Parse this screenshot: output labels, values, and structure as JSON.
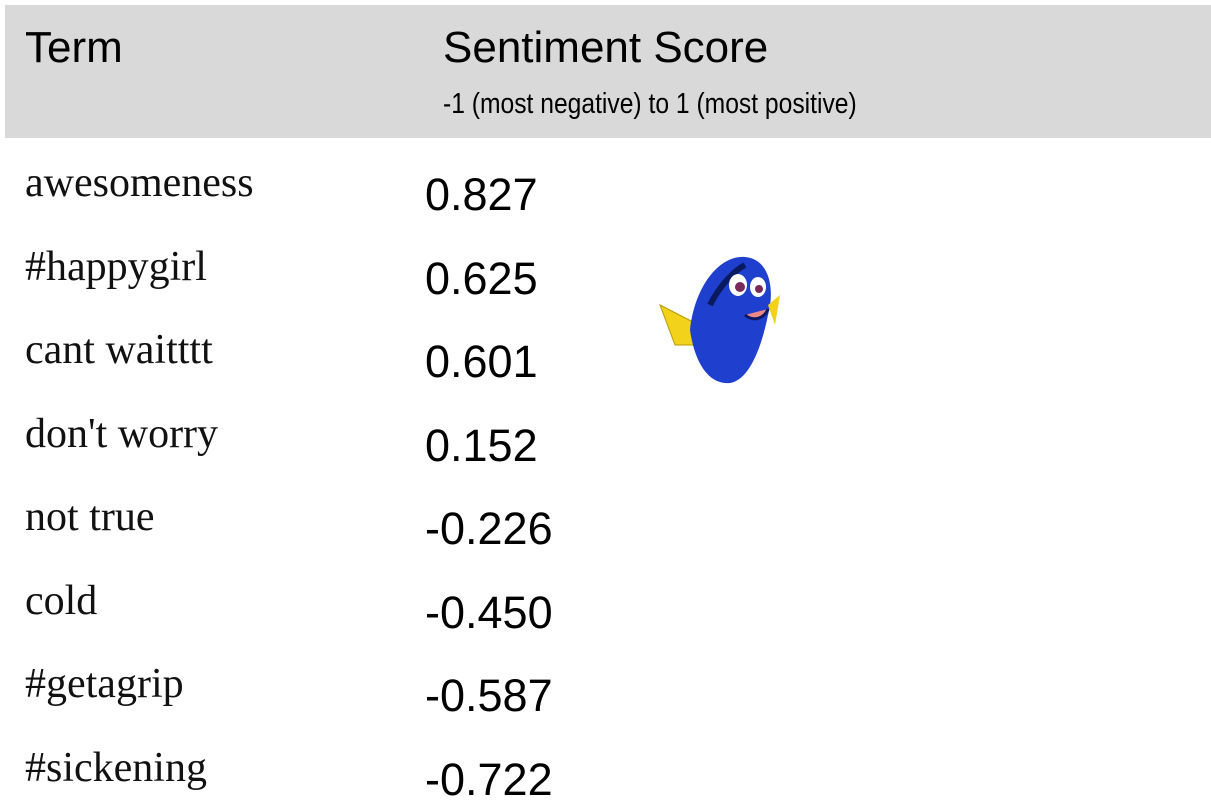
{
  "header": {
    "columns": [
      "Term",
      "Sentiment Score"
    ],
    "subtitle": "-1 (most negative) to 1 (most positive)"
  },
  "table": {
    "rows": [
      [
        "awesomeness",
        "0.827"
      ],
      [
        "#happygirl",
        "0.625"
      ],
      [
        "cant waitttt",
        "0.601"
      ],
      [
        "don't worry",
        "0.152"
      ],
      [
        "not true",
        "-0.226"
      ],
      [
        "cold",
        "-0.450"
      ],
      [
        "#getagrip",
        "-0.587"
      ],
      [
        "#sickening",
        "-0.722"
      ]
    ]
  }
}
